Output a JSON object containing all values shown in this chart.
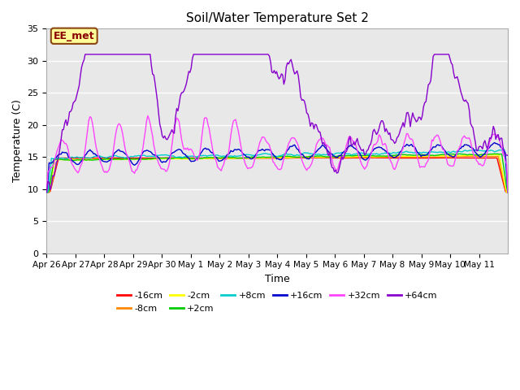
{
  "title": "Soil/Water Temperature Set 2",
  "xlabel": "Time",
  "ylabel": "Temperature (C)",
  "ylim": [
    0,
    35
  ],
  "yticks": [
    0,
    5,
    10,
    15,
    20,
    25,
    30,
    35
  ],
  "fig_facecolor": "#ffffff",
  "plot_bg_color": "#e8e8e8",
  "annotation_text": "EE_met",
  "annotation_box_color": "#ffff99",
  "annotation_border_color": "#8B4513",
  "series_order": [
    "-16cm",
    "-8cm",
    "-2cm",
    "+2cm",
    "+8cm",
    "+16cm",
    "+32cm",
    "+64cm"
  ],
  "series": {
    "-16cm": {
      "color": "#ff0000",
      "lw": 1.0
    },
    "-8cm": {
      "color": "#ff8800",
      "lw": 1.0
    },
    "-2cm": {
      "color": "#ffff00",
      "lw": 1.0
    },
    "+2cm": {
      "color": "#00cc00",
      "lw": 1.0
    },
    "+8cm": {
      "color": "#00cccc",
      "lw": 1.0
    },
    "+16cm": {
      "color": "#0000cc",
      "lw": 1.0
    },
    "+32cm": {
      "color": "#ff44ff",
      "lw": 1.0
    },
    "+64cm": {
      "color": "#8800cc",
      "lw": 1.0
    }
  },
  "xticklabels": [
    "Apr 26",
    "Apr 27",
    "Apr 28",
    "Apr 29",
    "Apr 30",
    "May 1",
    "May 2",
    "May 3",
    "May 4",
    "May 5",
    "May 6",
    "May 7",
    "May 8",
    "May 9",
    "May 10",
    "May 11"
  ],
  "n_days": 16,
  "points_per_day": 24,
  "legend_ncol1": 6,
  "legend_ncol2": 2
}
